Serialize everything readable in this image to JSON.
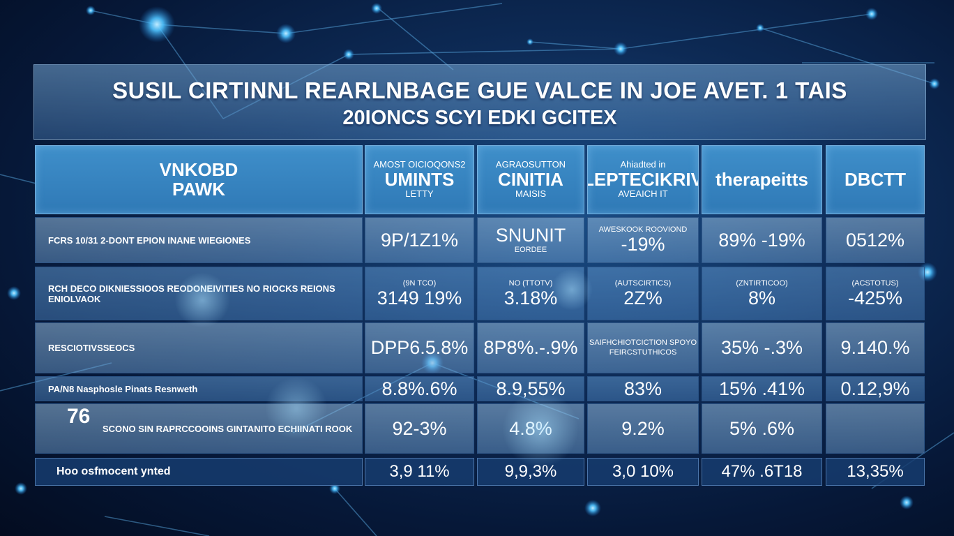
{
  "title": {
    "line1": "SUSIL CIRTINNL REARLNBAGE GUE VALCE IN JOE AVET. 1 TAIS",
    "line2": "20IONCS SCYI EDKI GCITEX"
  },
  "table": {
    "headers": [
      {
        "lines": [
          "VNKOBD",
          "PAWK"
        ]
      },
      {
        "lines": [
          "AMOST OICIOQONS2",
          "UMINTS",
          "LETTY"
        ]
      },
      {
        "lines": [
          "AGRAOSUTTON",
          "CINITIA",
          "MAISIS"
        ]
      },
      {
        "lines": [
          "Ahiadted in",
          "SLEPTECIKRIVE",
          "AVEAICH IT"
        ]
      },
      {
        "lines": [
          "therapeitts"
        ]
      },
      {
        "lines": [
          "DBCTT"
        ]
      }
    ],
    "rows": [
      {
        "label": "FCRS 10/31 2-DONT EPION INANE WIEGIONES",
        "cells": [
          {
            "main": "9P/1Z1%",
            "sub": ""
          },
          {
            "main": "SNUNIT",
            "sub": "EORDEE"
          },
          {
            "main": "-19%",
            "sub": "AWESKOOK ROOVIOND"
          },
          {
            "main": "89% -19%",
            "sub": ""
          },
          {
            "main": "0512%",
            "sub": ""
          }
        ]
      },
      {
        "label": "RCH DECO DIKNIESSIOOS REODONEIVITIES NO RIOCKS REIONS ENIOLVAOK",
        "cells": [
          {
            "main": "3149 19%",
            "sub": "(9N TCO)"
          },
          {
            "main": "3.18%",
            "sub": "NO (TTOTV)"
          },
          {
            "main": "2Z%",
            "sub": "(AUTSCIRTICS)"
          },
          {
            "main": "8%",
            "sub": "(ZNTIRTICOO)"
          },
          {
            "main": "-425%",
            "sub": "(ACSTOTUS)"
          }
        ]
      },
      {
        "label": "RESCIOTIVSSEOCS",
        "cells": [
          {
            "main": "DPP6.5.8%",
            "sub": ""
          },
          {
            "main": "8P8%.-.9%",
            "sub": ""
          },
          {
            "main": "",
            "sub": "SAIFHCHIOTCICTION SPOYO FEIRCSTUTHICOS"
          },
          {
            "main": "35% -.3%",
            "sub": ""
          },
          {
            "main": "9.140.%",
            "sub": ""
          }
        ]
      },
      {
        "label": "PA/N8 Nasphosle Pinats Resnweth",
        "cells": [
          {
            "main": "8.8%.6%",
            "sub": ""
          },
          {
            "main": "8.9,55%",
            "sub": ""
          },
          {
            "main": "83%",
            "sub": ""
          },
          {
            "main": "15% .41%",
            "sub": ""
          },
          {
            "main": "0.12,9%",
            "sub": ""
          }
        ]
      },
      {
        "label": "SCONO SIN RAPRCCOOINS GINTANITO ECHIINATI ROOK",
        "badge": "76",
        "cells": [
          {
            "main": "92-3%",
            "sub": ""
          },
          {
            "main": "4.8%",
            "sub": ""
          },
          {
            "main": "9.2%",
            "sub": ""
          },
          {
            "main": "5% .6%",
            "sub": ""
          },
          {
            "main": "",
            "sub": ""
          }
        ]
      }
    ],
    "footer": {
      "label": "Hoo osfmocent ynted",
      "values": [
        "3,9 11%",
        "9,9,3%",
        "3,0 10%",
        "47% .6T18",
        "13,35%"
      ]
    }
  },
  "colors": {
    "background": "#061838",
    "header_cell": "#3586c2",
    "body_cell": "#7ea9d2",
    "footer_cell": "#163c6e",
    "node_glow": "#4fc3ff"
  }
}
